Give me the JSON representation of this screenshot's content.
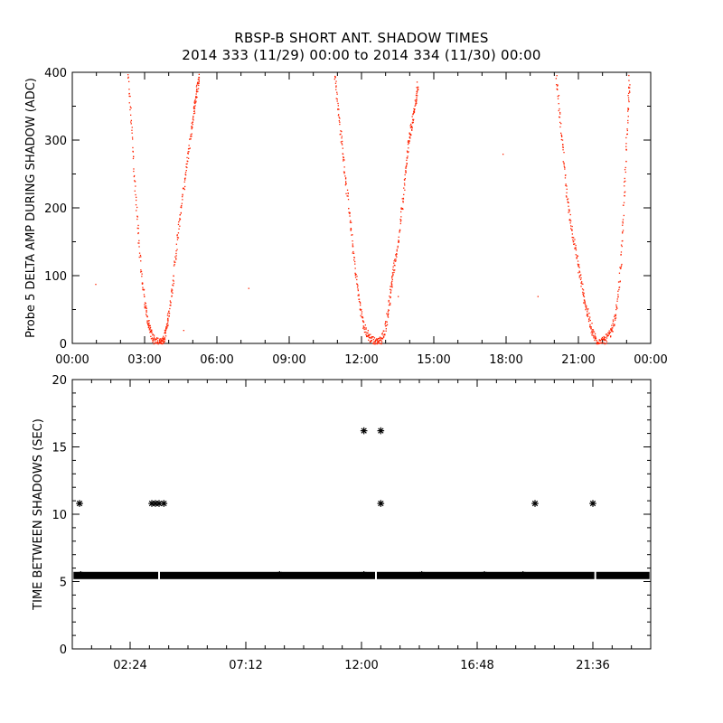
{
  "title_line1": "RBSP-B SHORT ANT. SHADOW TIMES",
  "title_line2": "2014 333 (11/29) 00:00 to 2014 334 (11/30) 00:00",
  "chart_data": [
    {
      "type": "scatter",
      "title": "",
      "ylabel": "Probe 5 DELTA AMP DURING SHADOW (ADC)",
      "xlabel": "",
      "xlim_hours": [
        0,
        24
      ],
      "ylim": [
        0,
        400
      ],
      "x_tick_labels": [
        "00:00",
        "03:00",
        "06:00",
        "09:00",
        "12:00",
        "15:00",
        "18:00",
        "21:00",
        "00:00"
      ],
      "x_tick_hours": [
        0,
        3,
        6,
        9,
        12,
        15,
        18,
        21,
        24
      ],
      "y_ticks": [
        0,
        100,
        200,
        300,
        400
      ],
      "marker_color": "#ff2200",
      "curves": [
        {
          "x_hours": [
            2.28,
            2.42,
            2.55,
            2.7,
            2.85,
            3.0,
            3.1,
            3.2,
            3.3,
            3.45,
            3.6,
            3.72,
            3.8,
            3.9,
            4.0,
            4.15,
            4.3,
            4.45,
            4.6,
            4.75,
            4.9,
            5.0,
            5.1,
            5.18,
            5.25
          ],
          "y": [
            400,
            330,
            250,
            170,
            100,
            60,
            35,
            20,
            10,
            3,
            1,
            3,
            10,
            25,
            50,
            90,
            140,
            190,
            230,
            270,
            310,
            340,
            360,
            380,
            398
          ]
        },
        {
          "x_hours": [
            10.88,
            11.0,
            11.15,
            11.3,
            11.45,
            11.6,
            11.75,
            11.9,
            12.05,
            12.2,
            12.35,
            12.5,
            12.65,
            12.8,
            12.95,
            13.1,
            13.2,
            13.3,
            13.45,
            13.6,
            13.75,
            13.85,
            13.95,
            14.05,
            14.15,
            14.25,
            14.32
          ],
          "y": [
            400,
            350,
            300,
            250,
            200,
            150,
            100,
            60,
            30,
            15,
            8,
            3,
            1,
            5,
            20,
            50,
            80,
            110,
            130,
            180,
            230,
            270,
            300,
            320,
            340,
            360,
            385
          ]
        },
        {
          "x_hours": [
            20.05,
            20.2,
            20.35,
            20.5,
            20.65,
            20.8,
            20.95,
            21.1,
            21.25,
            21.4,
            21.55,
            21.7,
            21.85,
            22.0,
            22.15,
            22.3,
            22.45,
            22.6,
            22.75,
            22.85,
            22.95,
            23.05,
            23.1
          ],
          "y": [
            400,
            340,
            280,
            220,
            180,
            150,
            120,
            90,
            60,
            40,
            20,
            5,
            1,
            3,
            8,
            15,
            30,
            60,
            120,
            200,
            280,
            350,
            400
          ]
        }
      ],
      "isolated_points": [
        {
          "x_hours": 0.95,
          "y": 88
        },
        {
          "x_hours": 4.6,
          "y": 20
        },
        {
          "x_hours": 7.3,
          "y": 82
        },
        {
          "x_hours": 13.5,
          "y": 70
        },
        {
          "x_hours": 17.85,
          "y": 280
        },
        {
          "x_hours": 19.3,
          "y": 70
        }
      ]
    },
    {
      "type": "scatter",
      "title": "",
      "ylabel": "TIME BETWEEN SHADOWS (SEC)",
      "xlabel": "",
      "xlim_hours": [
        0,
        24
      ],
      "ylim": [
        0,
        20
      ],
      "x_tick_labels": [
        "02:24",
        "07:12",
        "12:00",
        "16:48",
        "21:36"
      ],
      "x_tick_hours": [
        2.4,
        7.2,
        12.0,
        16.8,
        21.6
      ],
      "y_ticks": [
        0,
        5,
        10,
        15,
        20
      ],
      "marker": "asterisk",
      "marker_color": "#000000",
      "baseline_band": {
        "value": 5.45,
        "x_start_hours": 0.05,
        "x_end_hours": 23.95,
        "gaps_hours": [
          3.6,
          12.6,
          21.7
        ]
      },
      "points": [
        {
          "x_hours": 0.3,
          "y": 10.8
        },
        {
          "x_hours": 3.3,
          "y": 10.8
        },
        {
          "x_hours": 3.45,
          "y": 10.8
        },
        {
          "x_hours": 3.6,
          "y": 10.8
        },
        {
          "x_hours": 3.8,
          "y": 10.8
        },
        {
          "x_hours": 12.1,
          "y": 16.2
        },
        {
          "x_hours": 12.8,
          "y": 16.2
        },
        {
          "x_hours": 12.8,
          "y": 10.8
        },
        {
          "x_hours": 19.2,
          "y": 10.8
        },
        {
          "x_hours": 21.6,
          "y": 10.8
        }
      ]
    }
  ]
}
